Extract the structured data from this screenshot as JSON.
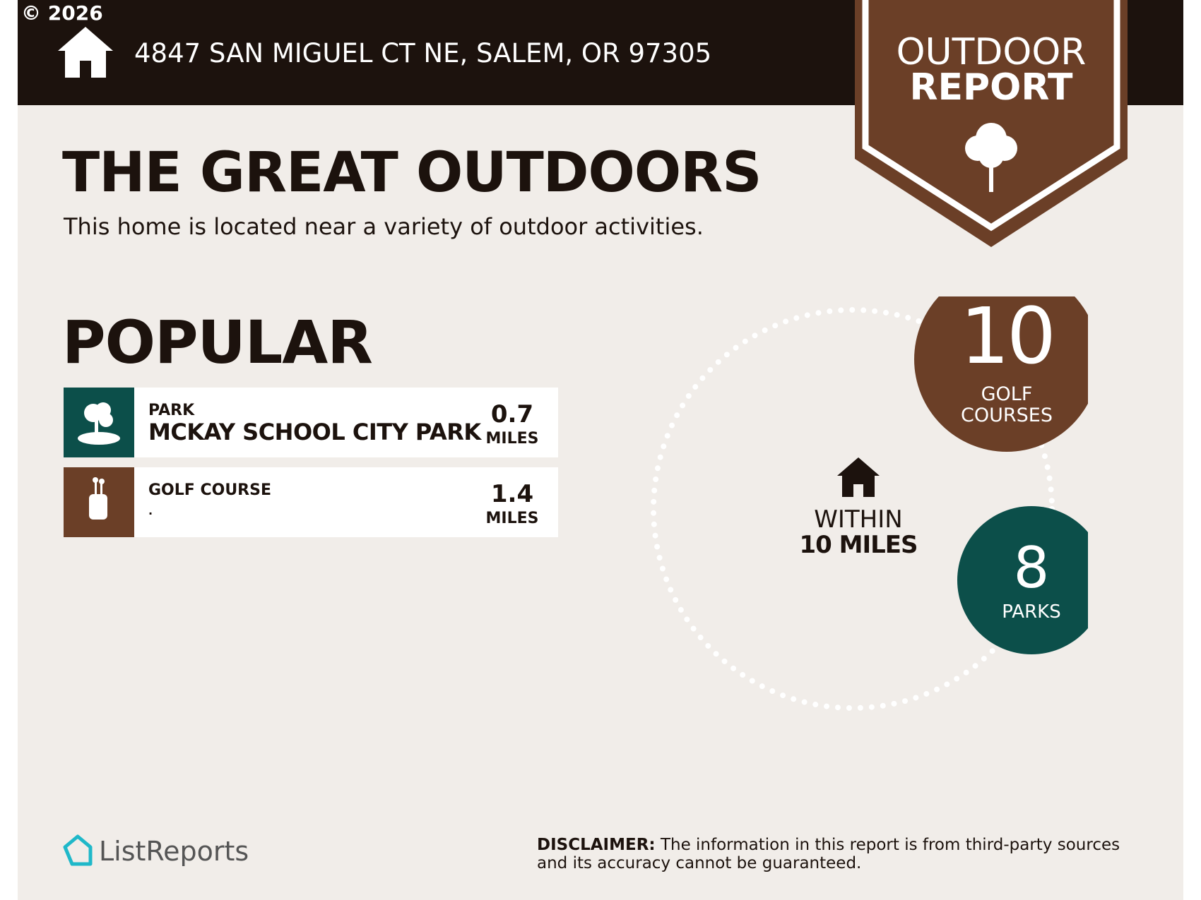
{
  "copyright": "© 2026",
  "header": {
    "address": "4847 SAN MIGUEL CT NE, SALEM, OR 97305"
  },
  "badge": {
    "line1": "OUTDOOR",
    "line2": "REPORT"
  },
  "title": "THE GREAT OUTDOORS",
  "subtitle": "This home is located near a variety of outdoor activities.",
  "popular": {
    "heading": "POPULAR",
    "items": [
      {
        "category": "PARK",
        "name": "MCKAY SCHOOL CITY PARK",
        "distance": "0.7",
        "unit": "MILES"
      },
      {
        "category": "GOLF COURSE",
        "name": ".",
        "distance": "1.4",
        "unit": "MILES"
      }
    ]
  },
  "within": {
    "line1": "WITHIN",
    "line2": "10 MILES"
  },
  "counts": [
    {
      "value": "10",
      "label": "GOLF COURSES"
    },
    {
      "value": "8",
      "label": "PARKS"
    }
  ],
  "footer": {
    "logo": "ListReports",
    "disclaimer_label": "DISCLAIMER:",
    "disclaimer_text": "The information in this report is from third-party sources and its accuracy cannot be guaranteed."
  }
}
